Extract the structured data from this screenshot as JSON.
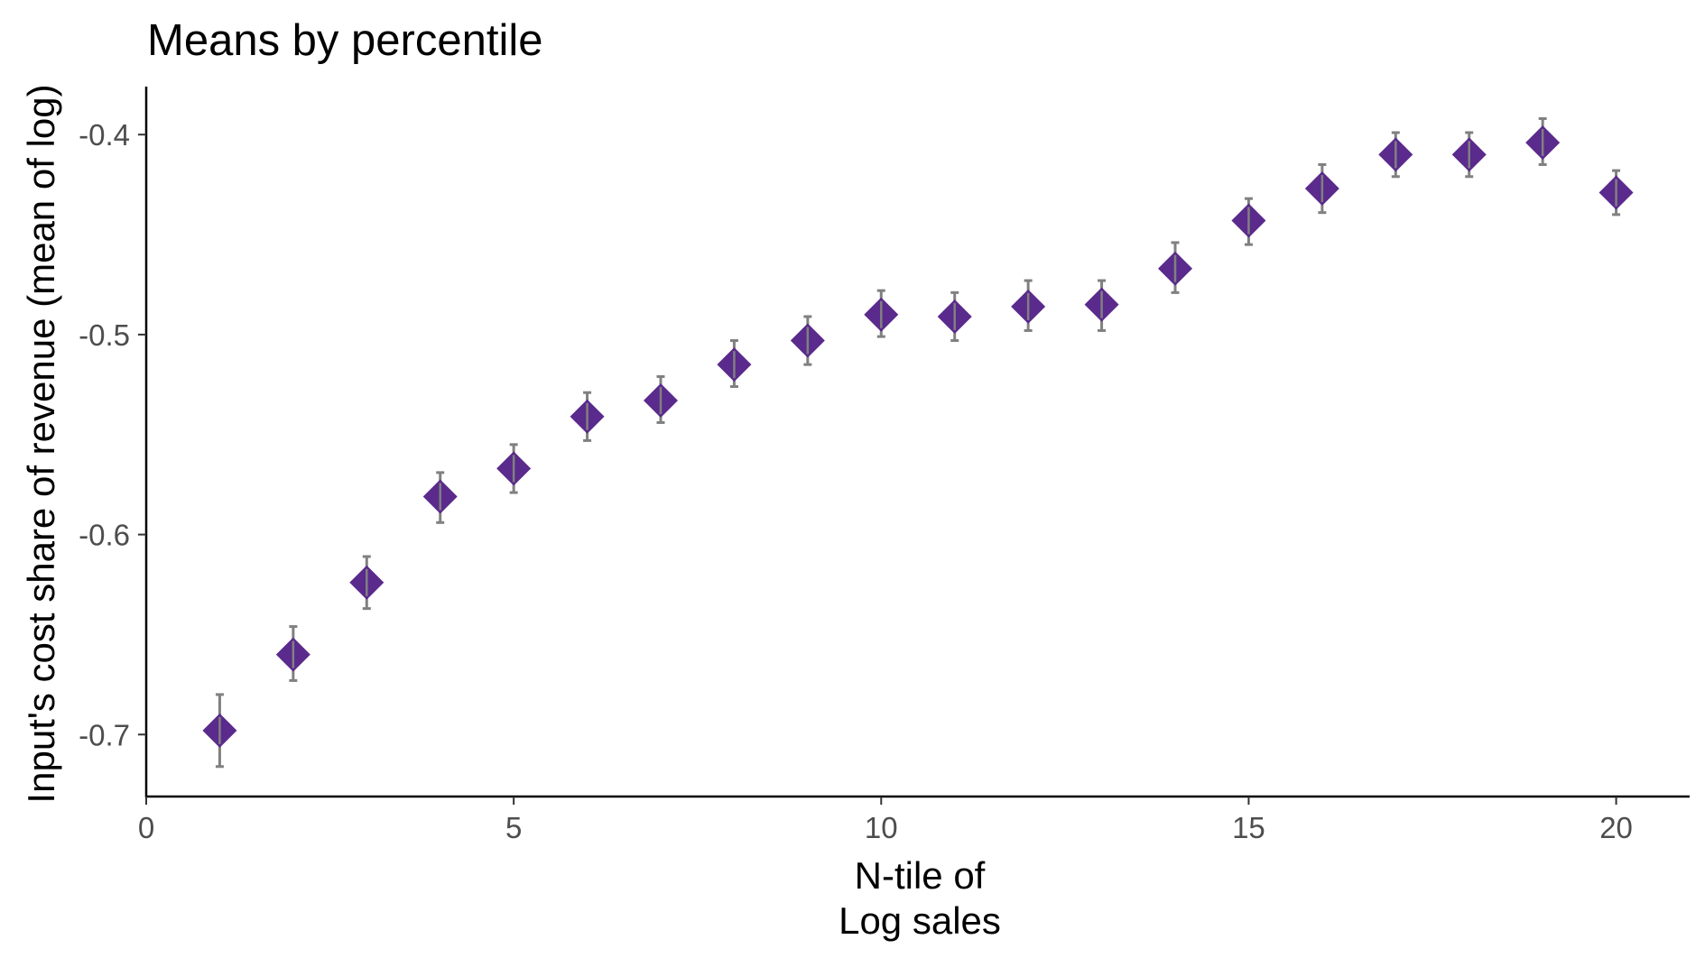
{
  "chart_data": {
    "type": "scatter",
    "title": "Means by percentile",
    "xlabel_lines": [
      "N-tile of",
      "Log sales"
    ],
    "ylabel": "Input's cost share of revenue (mean of log)",
    "xlim": [
      0,
      21
    ],
    "ylim": [
      -0.731,
      -0.376
    ],
    "x_ticks": [
      0,
      5,
      10,
      15,
      20
    ],
    "x_tick_labels": [
      "0",
      "5",
      "10",
      "15",
      "20"
    ],
    "y_ticks": [
      -0.7,
      -0.6,
      -0.5,
      -0.4
    ],
    "y_tick_labels": [
      "-0.7",
      "-0.6",
      "-0.5",
      "-0.4"
    ],
    "grid": false,
    "marker": "diamond",
    "marker_color": "#5a2a8c",
    "errorbar_color": "#808080",
    "points": [
      {
        "x": 1,
        "y": -0.698,
        "lo": -0.716,
        "hi": -0.68
      },
      {
        "x": 2,
        "y": -0.66,
        "lo": -0.673,
        "hi": -0.646
      },
      {
        "x": 3,
        "y": -0.624,
        "lo": -0.637,
        "hi": -0.611
      },
      {
        "x": 4,
        "y": -0.581,
        "lo": -0.594,
        "hi": -0.569
      },
      {
        "x": 5,
        "y": -0.567,
        "lo": -0.579,
        "hi": -0.555
      },
      {
        "x": 6,
        "y": -0.541,
        "lo": -0.553,
        "hi": -0.529
      },
      {
        "x": 7,
        "y": -0.533,
        "lo": -0.544,
        "hi": -0.521
      },
      {
        "x": 8,
        "y": -0.515,
        "lo": -0.526,
        "hi": -0.503
      },
      {
        "x": 9,
        "y": -0.503,
        "lo": -0.515,
        "hi": -0.491
      },
      {
        "x": 10,
        "y": -0.49,
        "lo": -0.501,
        "hi": -0.478
      },
      {
        "x": 11,
        "y": -0.491,
        "lo": -0.503,
        "hi": -0.479
      },
      {
        "x": 12,
        "y": -0.486,
        "lo": -0.498,
        "hi": -0.473
      },
      {
        "x": 13,
        "y": -0.485,
        "lo": -0.498,
        "hi": -0.473
      },
      {
        "x": 14,
        "y": -0.467,
        "lo": -0.479,
        "hi": -0.454
      },
      {
        "x": 15,
        "y": -0.443,
        "lo": -0.455,
        "hi": -0.432
      },
      {
        "x": 16,
        "y": -0.427,
        "lo": -0.439,
        "hi": -0.415
      },
      {
        "x": 17,
        "y": -0.41,
        "lo": -0.421,
        "hi": -0.399
      },
      {
        "x": 18,
        "y": -0.41,
        "lo": -0.421,
        "hi": -0.399
      },
      {
        "x": 19,
        "y": -0.404,
        "lo": -0.415,
        "hi": -0.392
      },
      {
        "x": 20,
        "y": -0.429,
        "lo": -0.44,
        "hi": -0.418
      }
    ]
  }
}
